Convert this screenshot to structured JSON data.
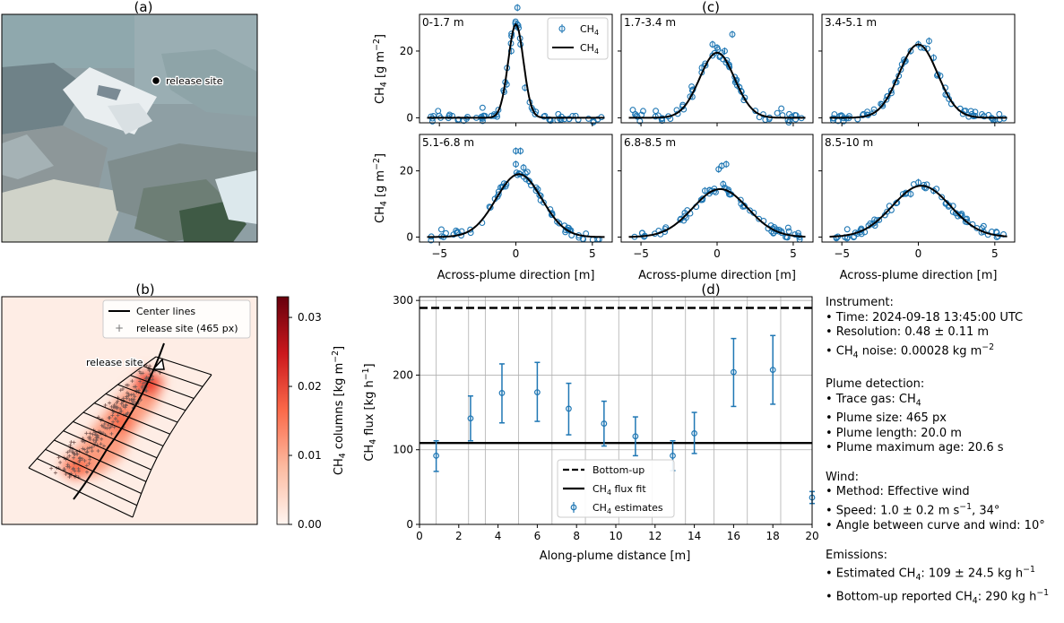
{
  "panel_labels": {
    "a": "(a)",
    "b": "(b)",
    "c": "(c)",
    "d": "(d)"
  },
  "panel_a": {
    "marker_label": "release site"
  },
  "panel_b": {
    "legend": {
      "center_lines": "Center lines",
      "release_site": "release site  (465 px)"
    },
    "marker_label": "release site",
    "colorbar": {
      "label": "CH4 columns [kg m−2]",
      "ticks": [
        "0.00",
        "0.01",
        "0.02",
        "0.03"
      ],
      "tick_values": [
        0,
        0.01,
        0.02,
        0.03
      ],
      "range": [
        0,
        0.033
      ],
      "colormap": "Reds"
    }
  },
  "chart_data": [
    {
      "type": "scatter",
      "panel": "c",
      "xlabel": "Across-plume direction [m]",
      "ylabel": "CH4 [g m−2]",
      "xlim": [
        -6.3,
        6.3
      ],
      "ylim": [
        -1.5,
        31
      ],
      "xticks": [
        -5,
        0,
        5
      ],
      "yticks": [
        0,
        20
      ],
      "legend": {
        "points": "CH4",
        "fit": "CH4",
        "placement": "top-right (first subplot)"
      },
      "colors": {
        "points": "#1f77b4",
        "fit": "#000000"
      },
      "subplots": [
        {
          "title": "0-1.7 m",
          "fit_amplitude": 28.0,
          "fit_center": 0.0,
          "fit_sigma": 0.5,
          "peak_points": [
            [
              0.0,
              27.5
            ],
            [
              0.1,
              33.0
            ],
            [
              -0.3,
              20.0
            ],
            [
              0.3,
              22.0
            ],
            [
              -0.6,
              10.0
            ],
            [
              0.6,
              9.0
            ]
          ]
        },
        {
          "title": "1.7-3.4 m",
          "fit_amplitude": 19.5,
          "fit_center": 0.0,
          "fit_sigma": 1.15,
          "peak_points": [
            [
              -0.3,
              22.0
            ],
            [
              0.0,
              21.0
            ],
            [
              0.5,
              20.0
            ],
            [
              1.0,
              25.0
            ],
            [
              -1.0,
              15.0
            ]
          ]
        },
        {
          "title": "3.4-5.1 m",
          "fit_amplitude": 22.0,
          "fit_center": 0.0,
          "fit_sigma": 1.25,
          "peak_points": [
            [
              0.0,
              22.0
            ],
            [
              0.7,
              23.0
            ],
            [
              -0.5,
              20.0
            ],
            [
              1.0,
              18.0
            ]
          ]
        },
        {
          "title": "5.1-6.8 m",
          "fit_amplitude": 19.0,
          "fit_center": 0.2,
          "fit_sigma": 1.5,
          "peak_points": [
            [
              0.0,
              26.0
            ],
            [
              0.3,
              26.0
            ],
            [
              0.0,
              22.0
            ],
            [
              0.5,
              21.0
            ],
            [
              -1.0,
              15.0
            ]
          ]
        },
        {
          "title": "6.8-8.5 m",
          "fit_amplitude": 14.5,
          "fit_center": 0.2,
          "fit_sigma": 1.8,
          "peak_points": [
            [
              0.1,
              20.5
            ],
            [
              0.3,
              21.5
            ],
            [
              0.6,
              22.0
            ],
            [
              0.4,
              16.0
            ],
            [
              -0.8,
              14.0
            ]
          ]
        },
        {
          "title": "8.5-10 m",
          "fit_amplitude": 15.5,
          "fit_center": 0.2,
          "fit_sigma": 1.9,
          "peak_points": [
            [
              0.0,
              16.5
            ],
            [
              0.4,
              15.0
            ],
            [
              -0.5,
              13.0
            ],
            [
              1.0,
              14.0
            ]
          ]
        }
      ]
    },
    {
      "type": "scatter",
      "panel": "d",
      "xlabel": "Along-plume distance [m]",
      "ylabel": "CH4 flux [kg h−1]",
      "xlim": [
        0,
        20
      ],
      "ylim": [
        0,
        305
      ],
      "xticks": [
        0,
        2,
        4,
        6,
        8,
        10,
        12,
        14,
        16,
        18,
        20
      ],
      "yticks": [
        0,
        100,
        200,
        300
      ],
      "grid_x": [
        0.85,
        2.5,
        3.35,
        5.05,
        6.75,
        8.45,
        10.15,
        11.85,
        13.55,
        15.0,
        16.7,
        18.4
      ],
      "grid_y": [
        100,
        200,
        300
      ],
      "bottom_up": 290,
      "flux_fit": 109,
      "points": [
        {
          "x": 0.85,
          "y": 92,
          "lo": 71,
          "hi": 112
        },
        {
          "x": 2.6,
          "y": 142,
          "lo": 112,
          "hi": 172
        },
        {
          "x": 4.2,
          "y": 176,
          "lo": 136,
          "hi": 215
        },
        {
          "x": 6.0,
          "y": 177,
          "lo": 138,
          "hi": 217
        },
        {
          "x": 7.6,
          "y": 155,
          "lo": 120,
          "hi": 189
        },
        {
          "x": 9.4,
          "y": 135,
          "lo": 105,
          "hi": 165
        },
        {
          "x": 11.0,
          "y": 118,
          "lo": 92,
          "hi": 144
        },
        {
          "x": 12.9,
          "y": 92,
          "lo": 72,
          "hi": 112
        },
        {
          "x": 14.0,
          "y": 122,
          "lo": 95,
          "hi": 150
        },
        {
          "x": 16.0,
          "y": 204,
          "lo": 158,
          "hi": 249
        },
        {
          "x": 18.0,
          "y": 207,
          "lo": 161,
          "hi": 253
        },
        {
          "x": 20.0,
          "y": 36,
          "lo": 28,
          "hi": 44
        }
      ],
      "legend": {
        "bottom_up": "Bottom-up",
        "fit": "CH4 flux fit",
        "estimates": "CH4 estimates",
        "placement": "lower-center"
      },
      "colors": {
        "points": "#1f77b4",
        "lines": "#000000"
      }
    }
  ],
  "info": {
    "instrument": {
      "heading": "Instrument:",
      "lines": [
        "• Time: 2024-09-18 13:45:00 UTC",
        "• Resolution: 0.48 ± 0.11 m",
        "• CH4 noise: 0.00028 kg m−2"
      ]
    },
    "plume": {
      "heading": "Plume detection:",
      "lines": [
        "• Trace gas: CH4",
        "• Plume size: 465 px",
        "• Plume length: 20.0 m",
        "• Plume maximum age: 20.6 s"
      ]
    },
    "wind": {
      "heading": "Wind:",
      "lines": [
        "• Method: Effective wind",
        "• Speed: 1.0 ± 0.2 m s−1, 34°",
        "• Angle between curve and wind: 10°"
      ]
    },
    "emissions": {
      "heading": "Emissions:",
      "lines": [
        "• Estimated CH4: 109 ± 24.5 kg h−1",
        "• Bottom-up reported CH4: 290 kg h−1"
      ]
    }
  }
}
